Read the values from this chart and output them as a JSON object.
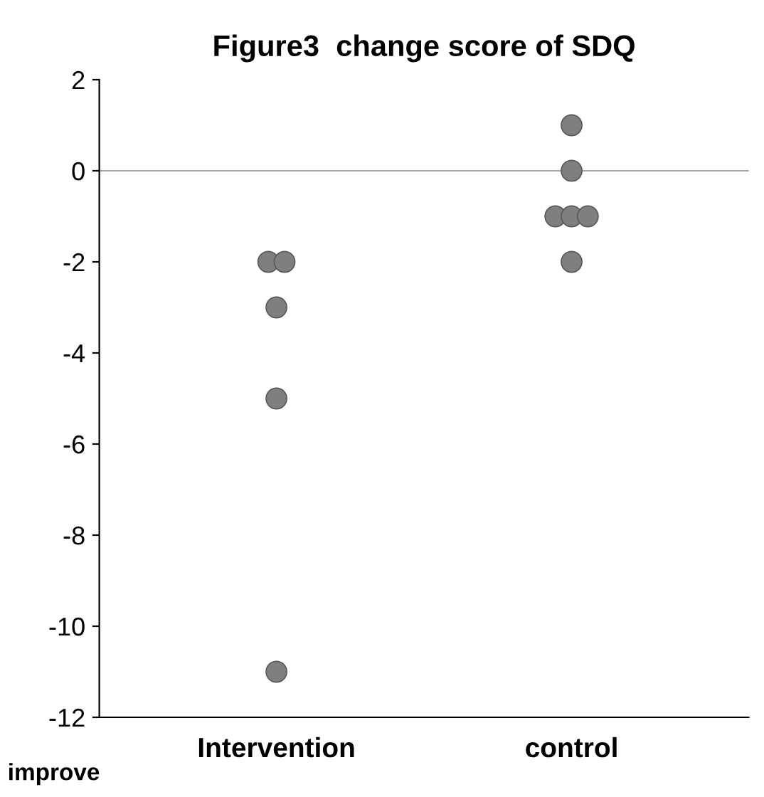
{
  "chart_data": {
    "type": "scatter",
    "title": "Figure3  change score of SDQ",
    "categories": [
      "Intervention",
      "control"
    ],
    "series": [
      {
        "color": "#7f7f7f",
        "x": [
          "Intervention",
          "Intervention",
          "Intervention",
          "Intervention",
          "Intervention",
          "control",
          "control",
          "control",
          "control",
          "control",
          "control"
        ],
        "values": [
          -2,
          -2,
          -3,
          -5,
          -11,
          1,
          0,
          -1,
          -1,
          -1,
          -2
        ]
      }
    ],
    "ylim": [
      -12,
      2
    ],
    "yticks": [
      -12,
      -10,
      -8,
      -6,
      -4,
      -2,
      0,
      2
    ],
    "ref_lines": [
      {
        "axis": "y",
        "value": 0,
        "color": "#a6a6a6"
      }
    ],
    "annotations": [
      "improve"
    ],
    "marker": "circle",
    "grid": false,
    "legend": false
  }
}
